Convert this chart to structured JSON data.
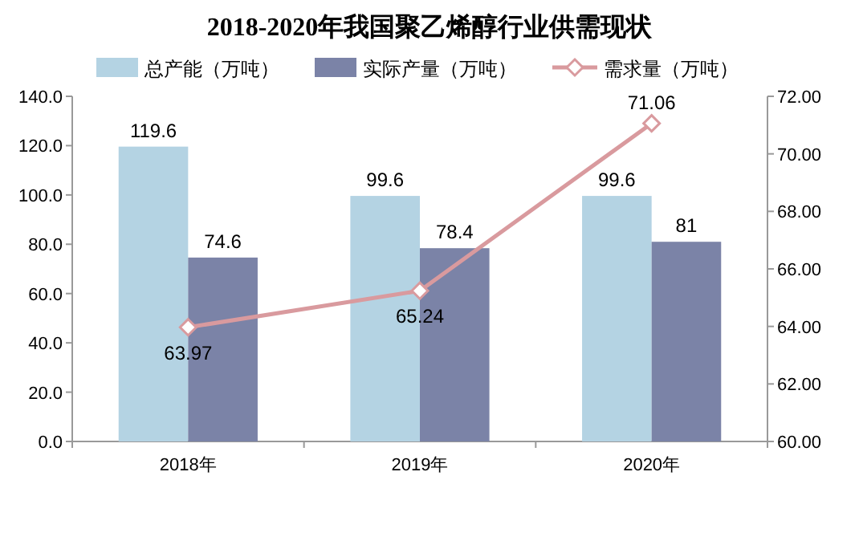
{
  "chart_data": {
    "type": "bar",
    "title": "2018-2020年我国聚乙烯醇行业供需现状",
    "categories": [
      "2018年",
      "2019年",
      "2020年"
    ],
    "series": [
      {
        "name": "总产能（万吨）",
        "color": "#b4d3e3",
        "values": [
          119.6,
          99.6,
          99.6
        ]
      },
      {
        "name": "实际产量（万吨）",
        "color": "#7b83a7",
        "values": [
          74.6,
          78.4,
          81
        ]
      },
      {
        "name": "需求量（万吨）",
        "color": "#d99a9e",
        "type": "line",
        "axis": "y2",
        "marker": "diamond",
        "values": [
          63.97,
          65.24,
          71.06
        ]
      }
    ],
    "ylim": [
      0,
      140
    ],
    "yticks": [
      {
        "value": 0,
        "label": "0.0"
      },
      {
        "value": 20,
        "label": "20.0"
      },
      {
        "value": 40,
        "label": "40.0"
      },
      {
        "value": 60,
        "label": "60.0"
      },
      {
        "value": 80,
        "label": "80.0"
      },
      {
        "value": 100,
        "label": "100.0"
      },
      {
        "value": 120,
        "label": "120.0"
      },
      {
        "value": 140,
        "label": "140.0"
      }
    ],
    "y2lim": [
      60,
      72
    ],
    "y2ticks": [
      {
        "value": 60,
        "label": "60.00"
      },
      {
        "value": 62,
        "label": "62.00"
      },
      {
        "value": 64,
        "label": "64.00"
      },
      {
        "value": 66,
        "label": "66.00"
      },
      {
        "value": 68,
        "label": "68.00"
      },
      {
        "value": 70,
        "label": "70.00"
      },
      {
        "value": 72,
        "label": "72.00"
      }
    ],
    "data_labels": true,
    "legend": "top",
    "grid": false
  }
}
